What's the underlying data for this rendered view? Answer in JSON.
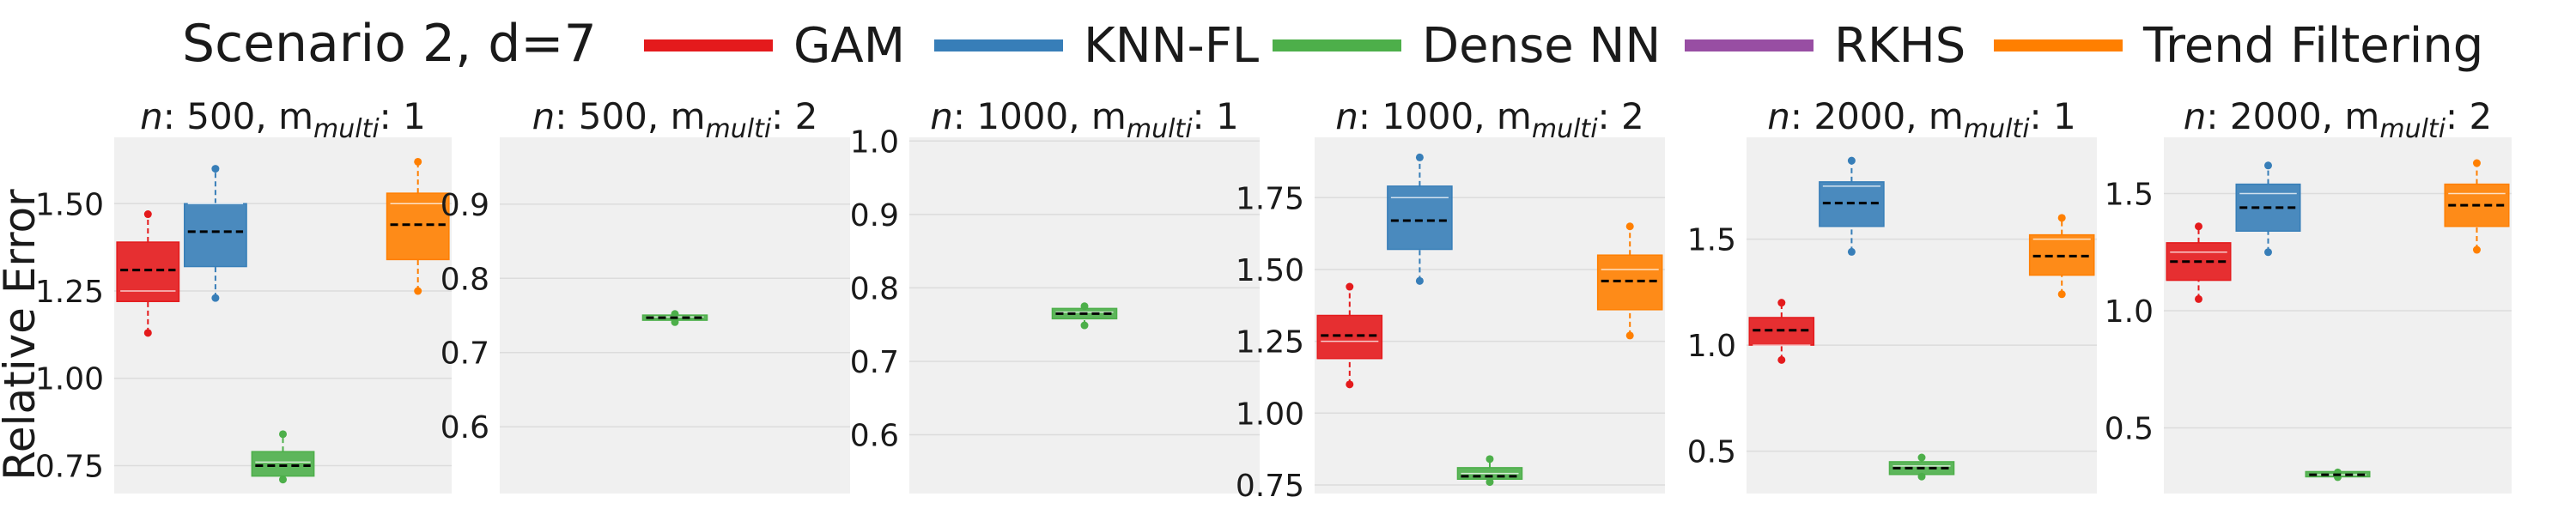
{
  "legend": {
    "title": "Scenario 2, d=7",
    "items": [
      {
        "label": "GAM",
        "color": "#e41a1c"
      },
      {
        "label": "KNN-FL",
        "color": "#377eb8"
      },
      {
        "label": "Dense NN",
        "color": "#4daf4a"
      },
      {
        "label": "RKHS",
        "color": "#984ea3"
      },
      {
        "label": "Trend Filtering",
        "color": "#ff7f00"
      }
    ]
  },
  "colors": {
    "panel_bg": "#f0f0f0",
    "grid": "#dcdcdc",
    "median_line": "#000000"
  },
  "ylabel": "Relative Error",
  "chart_data": [
    {
      "type": "box",
      "title_parts": {
        "pre": "n",
        "mid": ": 500, m",
        "sub": "multi",
        "post": ": 1"
      },
      "ylim": [
        0.67,
        1.69
      ],
      "yticks": [
        0.75,
        1.0,
        1.25,
        1.5
      ],
      "ytick_labels": [
        "0.75",
        "1.00",
        "1.25",
        "1.50"
      ],
      "series": [
        {
          "method": "GAM",
          "slot": 0,
          "min": 1.13,
          "q1": 1.22,
          "median": 1.31,
          "mean": 1.25,
          "q3": 1.39,
          "max": 1.47
        },
        {
          "method": "KNN-FL",
          "slot": 1,
          "min": 1.23,
          "q1": 1.32,
          "median": 1.42,
          "mean": 1.5,
          "q3": 1.5,
          "max": 1.6
        },
        {
          "method": "Dense NN",
          "slot": 2,
          "min": 0.71,
          "q1": 0.72,
          "median": 0.75,
          "mean": 0.76,
          "q3": 0.79,
          "max": 0.84
        },
        {
          "method": "Trend Filtering",
          "slot": 4,
          "min": 1.25,
          "q1": 1.34,
          "median": 1.44,
          "mean": 1.5,
          "q3": 1.53,
          "max": 1.62
        }
      ]
    },
    {
      "type": "box",
      "title_parts": {
        "pre": "n",
        "mid": ": 500, m",
        "sub": "multi",
        "post": ": 2"
      },
      "ylim": [
        0.51,
        0.99
      ],
      "yticks": [
        0.6,
        0.7,
        0.8,
        0.9
      ],
      "ytick_labels": [
        "0.6",
        "0.7",
        "0.8",
        "0.9"
      ],
      "series": [
        {
          "method": "Dense NN",
          "slot": 2,
          "min": 0.741,
          "q1": 0.744,
          "median": 0.747,
          "mean": 0.748,
          "q3": 0.75,
          "max": 0.752
        }
      ]
    },
    {
      "type": "box",
      "title_parts": {
        "pre": "n",
        "mid": ": 1000, m",
        "sub": "multi",
        "post": ": 1"
      },
      "ylim": [
        0.52,
        1.005
      ],
      "yticks": [
        0.6,
        0.7,
        0.8,
        0.9,
        1.0
      ],
      "ytick_labels": [
        "0.6",
        "0.7",
        "0.8",
        "0.9",
        "1.0"
      ],
      "series": [
        {
          "method": "Dense NN",
          "slot": 2,
          "min": 0.749,
          "q1": 0.758,
          "median": 0.765,
          "mean": 0.767,
          "q3": 0.772,
          "max": 0.775
        }
      ]
    },
    {
      "type": "box",
      "title_parts": {
        "pre": "n",
        "mid": ": 1000, m",
        "sub": "multi",
        "post": ": 2"
      },
      "ylim": [
        0.72,
        1.96
      ],
      "yticks": [
        0.75,
        1.0,
        1.25,
        1.5,
        1.75
      ],
      "ytick_labels": [
        "0.75",
        "1.00",
        "1.25",
        "1.50",
        "1.75"
      ],
      "series": [
        {
          "method": "GAM",
          "slot": 0,
          "min": 1.1,
          "q1": 1.19,
          "median": 1.27,
          "mean": 1.25,
          "q3": 1.34,
          "max": 1.44
        },
        {
          "method": "KNN-FL",
          "slot": 1,
          "min": 1.46,
          "q1": 1.57,
          "median": 1.67,
          "mean": 1.75,
          "q3": 1.79,
          "max": 1.89
        },
        {
          "method": "Dense NN",
          "slot": 2,
          "min": 0.76,
          "q1": 0.77,
          "median": 0.78,
          "mean": 0.79,
          "q3": 0.81,
          "max": 0.84
        },
        {
          "method": "Trend Filtering",
          "slot": 4,
          "min": 1.27,
          "q1": 1.36,
          "median": 1.46,
          "mean": 1.5,
          "q3": 1.55,
          "max": 1.65
        }
      ]
    },
    {
      "type": "box",
      "title_parts": {
        "pre": "n",
        "mid": ": 2000, m",
        "sub": "multi",
        "post": ": 1"
      },
      "ylim": [
        0.3,
        1.98
      ],
      "yticks": [
        0.5,
        1.0,
        1.5
      ],
      "ytick_labels": [
        "0.5",
        "1.0",
        "1.5"
      ],
      "series": [
        {
          "method": "GAM",
          "slot": 0,
          "min": 0.93,
          "q1": 1.0,
          "median": 1.07,
          "mean": 1.0,
          "q3": 1.13,
          "max": 1.2
        },
        {
          "method": "KNN-FL",
          "slot": 1,
          "min": 1.44,
          "q1": 1.56,
          "median": 1.67,
          "mean": 1.75,
          "q3": 1.77,
          "max": 1.87
        },
        {
          "method": "Dense NN",
          "slot": 2,
          "min": 0.38,
          "q1": 0.39,
          "median": 0.42,
          "mean": 0.43,
          "q3": 0.45,
          "max": 0.47
        },
        {
          "method": "Trend Filtering",
          "slot": 4,
          "min": 1.24,
          "q1": 1.33,
          "median": 1.42,
          "mean": 1.5,
          "q3": 1.52,
          "max": 1.6
        }
      ]
    },
    {
      "type": "box",
      "title_parts": {
        "pre": "n",
        "mid": ": 2000, m",
        "sub": "multi",
        "post": ": 2"
      },
      "ylim": [
        0.22,
        1.74
      ],
      "yticks": [
        0.5,
        1.0,
        1.5
      ],
      "ytick_labels": [
        "0.5",
        "1.0",
        "1.5"
      ],
      "series": [
        {
          "method": "GAM",
          "slot": 0,
          "min": 1.05,
          "q1": 1.13,
          "median": 1.21,
          "mean": 1.25,
          "q3": 1.29,
          "max": 1.36
        },
        {
          "method": "KNN-FL",
          "slot": 1,
          "min": 1.25,
          "q1": 1.34,
          "median": 1.44,
          "mean": 1.5,
          "q3": 1.54,
          "max": 1.62
        },
        {
          "method": "Dense NN",
          "slot": 2,
          "min": 0.29,
          "q1": 0.295,
          "median": 0.3,
          "mean": 0.3,
          "q3": 0.31,
          "max": 0.31
        },
        {
          "method": "Trend Filtering",
          "slot": 4,
          "min": 1.26,
          "q1": 1.36,
          "median": 1.45,
          "mean": 1.5,
          "q3": 1.54,
          "max": 1.63
        }
      ]
    }
  ]
}
